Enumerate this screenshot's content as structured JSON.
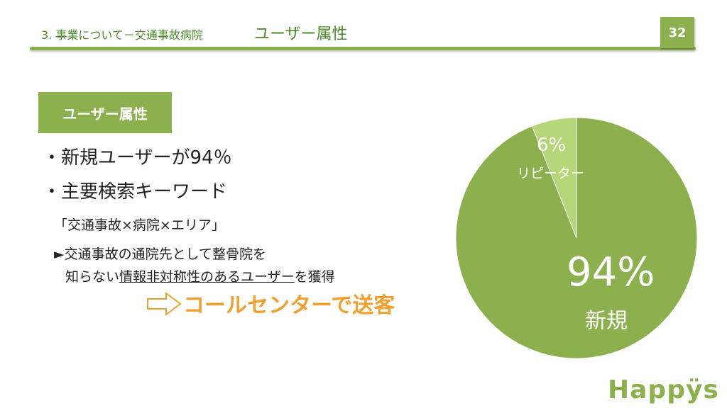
{
  "header": {
    "subtitle": "3. 事業について－交通事故病院",
    "title": "ユーザー属性",
    "page_number": "32"
  },
  "section_label": "ユーザー属性",
  "bullets": [
    "・新規ユーザーが94％",
    "・主要検索キーワード"
  ],
  "keyword_line": "「交通事故×病院×エリア」",
  "note_line1": "►交通事故の通院先として整骨院を",
  "note_line2_prefix": "知らない",
  "note_line2_underlined": "情報非対称性のあるユーザー",
  "note_line2_suffix": "を獲得",
  "callout": "コールセンターで送客",
  "logo": "Happÿs",
  "colors": {
    "accent_green": "#8db04f",
    "light_green": "#b6d67a",
    "callout_orange": "#f0a030"
  },
  "chart_data": {
    "type": "pie",
    "slices": [
      {
        "label": "新規",
        "percent_text": "94%",
        "value": 94,
        "color": "#8db04f"
      },
      {
        "label": "リピーター",
        "percent_text": "6%",
        "value": 6,
        "color": "#b6d67a"
      }
    ]
  }
}
